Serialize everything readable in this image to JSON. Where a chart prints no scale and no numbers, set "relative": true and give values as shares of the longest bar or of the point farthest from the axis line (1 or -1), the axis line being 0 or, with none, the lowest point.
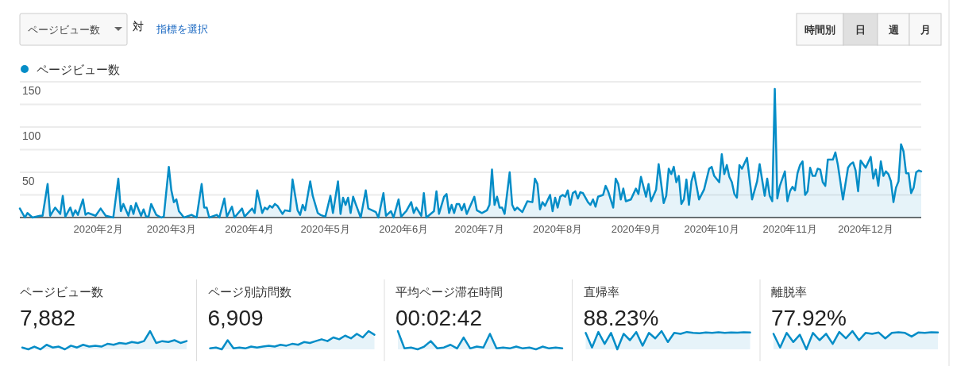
{
  "chart_data": [
    {
      "type": "area",
      "legend": "top left",
      "grid": "y",
      "annotations": [
        "ページビュー数",
        "対",
        "指標を選択",
        "時間別",
        "日",
        "週",
        "月"
      ],
      "xlim": [
        "2020-01-01",
        "2020-12-23"
      ],
      "xticks": [
        {
          "value": "2020-02-01",
          "label": "2020年2月"
        },
        {
          "value": "2020-03-01",
          "label": "2020年3月"
        },
        {
          "value": "2020-04-01",
          "label": "2020年4月"
        },
        {
          "value": "2020-05-01",
          "label": "2020年5月"
        },
        {
          "value": "2020-06-01",
          "label": "2020年6月"
        },
        {
          "value": "2020-07-01",
          "label": "2020年7月"
        },
        {
          "value": "2020-08-01",
          "label": "2020年8月"
        },
        {
          "value": "2020-09-01",
          "label": "2020年9月"
        },
        {
          "value": "2020-10-01",
          "label": "2020年10月"
        },
        {
          "value": "2020-11-01",
          "label": "2020年11月"
        },
        {
          "value": "2020-12-01",
          "label": "2020年12月"
        }
      ],
      "ylim": [
        0,
        150
      ],
      "yticks": [
        {
          "value": 0,
          "label": null
        },
        {
          "value": 25,
          "label": null
        },
        50,
        {
          "value": 75,
          "label": null
        },
        100,
        {
          "value": 125,
          "label": null
        },
        150
      ],
      "series": [
        {
          "name": "ページビュー数",
          "color": "#058dc7",
          "x": [
            "2020-01-01",
            "2020-01-03",
            "2020-01-04",
            "2020-01-06",
            "2020-01-09",
            "2020-01-10",
            "2020-01-12",
            "2020-01-13",
            "2020-01-15",
            "2020-01-17",
            "2020-01-18",
            "2020-01-19",
            "2020-01-21",
            "2020-01-22",
            "2020-01-23",
            "2020-01-24",
            "2020-01-26",
            "2020-01-27",
            "2020-01-28",
            "2020-01-31",
            "2020-02-02",
            "2020-02-04",
            "2020-02-07",
            "2020-02-09",
            "2020-02-10",
            "2020-02-11",
            "2020-02-13",
            "2020-02-14",
            "2020-02-15",
            "2020-02-16",
            "2020-02-18",
            "2020-02-19",
            "2020-02-20",
            "2020-02-21",
            "2020-02-22",
            "2020-02-24",
            "2020-02-26",
            "2020-02-27",
            "2020-02-29",
            "2020-03-01",
            "2020-03-02",
            "2020-03-03",
            "2020-03-04",
            "2020-03-06",
            "2020-03-09",
            "2020-03-11",
            "2020-03-13",
            "2020-03-14",
            "2020-03-15",
            "2020-03-16",
            "2020-03-19",
            "2020-03-20",
            "2020-03-22",
            "2020-03-23",
            "2020-03-25",
            "2020-03-26",
            "2020-03-29",
            "2020-03-30",
            "2020-04-02",
            "2020-04-03",
            "2020-04-04",
            "2020-04-06",
            "2020-04-07",
            "2020-04-08",
            "2020-04-09",
            "2020-04-10",
            "2020-04-11",
            "2020-04-12",
            "2020-04-14",
            "2020-04-15",
            "2020-04-17",
            "2020-04-18",
            "2020-04-20",
            "2020-04-21",
            "2020-04-22",
            "2020-04-23",
            "2020-04-25",
            "2020-04-26",
            "2020-04-28",
            "2020-04-29",
            "2020-05-01",
            "2020-05-03",
            "2020-05-04",
            "2020-05-06",
            "2020-05-07",
            "2020-05-08",
            "2020-05-09",
            "2020-05-10",
            "2020-05-11",
            "2020-05-12",
            "2020-05-13",
            "2020-05-15",
            "2020-05-17",
            "2020-05-18",
            "2020-05-21",
            "2020-05-22",
            "2020-05-24",
            "2020-05-25",
            "2020-05-27",
            "2020-05-28",
            "2020-05-30",
            "2020-05-31",
            "2020-06-02",
            "2020-06-04",
            "2020-06-05",
            "2020-06-06",
            "2020-06-08",
            "2020-06-09",
            "2020-06-10",
            "2020-06-13",
            "2020-06-14",
            "2020-06-15",
            "2020-06-17",
            "2020-06-18",
            "2020-06-19",
            "2020-06-20",
            "2020-06-21",
            "2020-06-22",
            "2020-06-23",
            "2020-06-24",
            "2020-06-25",
            "2020-06-26",
            "2020-06-29",
            "2020-06-30",
            "2020-07-02",
            "2020-07-04",
            "2020-07-05",
            "2020-07-06",
            "2020-07-07",
            "2020-07-08",
            "2020-07-09",
            "2020-07-10",
            "2020-07-11",
            "2020-07-13",
            "2020-07-14",
            "2020-07-15",
            "2020-07-16",
            "2020-07-18",
            "2020-07-20",
            "2020-07-22",
            "2020-07-23",
            "2020-07-24",
            "2020-07-25",
            "2020-07-26",
            "2020-07-27",
            "2020-07-29",
            "2020-07-30",
            "2020-07-31",
            "2020-08-01",
            "2020-08-02",
            "2020-08-03",
            "2020-08-04",
            "2020-08-05",
            "2020-08-06",
            "2020-08-07",
            "2020-08-08",
            "2020-08-09",
            "2020-08-10",
            "2020-08-11",
            "2020-08-13",
            "2020-08-14",
            "2020-08-15",
            "2020-08-16",
            "2020-08-17",
            "2020-08-19",
            "2020-08-20",
            "2020-08-21",
            "2020-08-23",
            "2020-08-24",
            "2020-08-25",
            "2020-08-26",
            "2020-08-27",
            "2020-08-28",
            "2020-08-30",
            "2020-08-31",
            "2020-09-01",
            "2020-09-02",
            "2020-09-03",
            "2020-09-05",
            "2020-09-06",
            "2020-09-07",
            "2020-09-09",
            "2020-09-10",
            "2020-09-12",
            "2020-09-13",
            "2020-09-14",
            "2020-09-15",
            "2020-09-16",
            "2020-09-17",
            "2020-09-18",
            "2020-09-19",
            "2020-09-20",
            "2020-09-21",
            "2020-09-22",
            "2020-09-23",
            "2020-09-24",
            "2020-09-26",
            "2020-09-28",
            "2020-09-30",
            "2020-10-01",
            "2020-10-02",
            "2020-10-04",
            "2020-10-05",
            "2020-10-06",
            "2020-10-07",
            "2020-10-08",
            "2020-10-09",
            "2020-10-10",
            "2020-10-11",
            "2020-10-12",
            "2020-10-13",
            "2020-10-15",
            "2020-10-17",
            "2020-10-19",
            "2020-10-20",
            "2020-10-22",
            "2020-10-23",
            "2020-10-24",
            "2020-10-25",
            "2020-10-26",
            "2020-10-27",
            "2020-10-28",
            "2020-10-30",
            "2020-10-31",
            "2020-11-01",
            "2020-11-02",
            "2020-11-03",
            "2020-11-04",
            "2020-11-05",
            "2020-11-06",
            "2020-11-07",
            "2020-11-08",
            "2020-11-09",
            "2020-11-10",
            "2020-11-11",
            "2020-11-12",
            "2020-11-13",
            "2020-11-14",
            "2020-11-15",
            "2020-11-16",
            "2020-11-18",
            "2020-11-19",
            "2020-11-20",
            "2020-11-22",
            "2020-11-24",
            "2020-11-25",
            "2020-11-26",
            "2020-11-27",
            "2020-11-28",
            "2020-11-29",
            "2020-12-01",
            "2020-12-03",
            "2020-12-04",
            "2020-12-05",
            "2020-12-06",
            "2020-12-07",
            "2020-12-08",
            "2020-12-09",
            "2020-12-10",
            "2020-12-11",
            "2020-12-12",
            "2020-12-13",
            "2020-12-14",
            "2020-12-15",
            "2020-12-16",
            "2020-12-17",
            "2020-12-18",
            "2020-12-19",
            "2020-12-20",
            "2020-12-21",
            "2020-12-22",
            "2020-12-23"
          ],
          "values": [
            10,
            0,
            5,
            0,
            2,
            2,
            37,
            2,
            11,
            4,
            24,
            1,
            11,
            2,
            8,
            3,
            20,
            3,
            5,
            2,
            10,
            2,
            0,
            43,
            7,
            15,
            2,
            13,
            4,
            16,
            2,
            9,
            1,
            1,
            15,
            3,
            0,
            1,
            56,
            30,
            17,
            20,
            7,
            0,
            3,
            0,
            37,
            11,
            11,
            0,
            3,
            0,
            21,
            1,
            12,
            0,
            10,
            1,
            10,
            5,
            30,
            5,
            11,
            9,
            13,
            11,
            15,
            13,
            4,
            8,
            7,
            42,
            8,
            3,
            14,
            8,
            40,
            24,
            5,
            3,
            1,
            24,
            5,
            40,
            4,
            22,
            14,
            22,
            5,
            23,
            15,
            0,
            30,
            10,
            6,
            0,
            27,
            2,
            7,
            0,
            20,
            1,
            7,
            17,
            5,
            11,
            2,
            27,
            0,
            7,
            29,
            4,
            23,
            26,
            5,
            14,
            5,
            15,
            15,
            8,
            15,
            4,
            23,
            8,
            5,
            8,
            14,
            53,
            14,
            23,
            11,
            11,
            4,
            50,
            14,
            8,
            11,
            6,
            18,
            17,
            43,
            37,
            9,
            17,
            13,
            25,
            7,
            22,
            11,
            23,
            25,
            23,
            30,
            14,
            27,
            29,
            21,
            28,
            27,
            17,
            14,
            20,
            12,
            23,
            25,
            35,
            29,
            11,
            43,
            37,
            20,
            32,
            18,
            20,
            26,
            32,
            26,
            45,
            23,
            37,
            18,
            31,
            59,
            16,
            24,
            54,
            48,
            56,
            39,
            46,
            15,
            20,
            42,
            14,
            40,
            50,
            20,
            31,
            54,
            56,
            46,
            39,
            70,
            48,
            58,
            45,
            39,
            26,
            22,
            58,
            54,
            66,
            20,
            40,
            59,
            24,
            43,
            24,
            18,
            142,
            21,
            35,
            51,
            18,
            29,
            34,
            30,
            49,
            58,
            62,
            25,
            29,
            55,
            46,
            46,
            54,
            53,
            39,
            35,
            64,
            64,
            72,
            58,
            20,
            55,
            59,
            61,
            52,
            29,
            63,
            55,
            67,
            43,
            53,
            35,
            62,
            46,
            51,
            48,
            40,
            17,
            33,
            40,
            81,
            73,
            49,
            49,
            27,
            33,
            50,
            52,
            51
          ]
        }
      ]
    },
    {
      "type": "area",
      "relative": true,
      "title": "ページビュー数",
      "subtitle": "7,882",
      "color": "#058dc7",
      "categories": [
        null,
        null,
        null,
        null,
        null,
        null,
        null,
        null,
        null,
        null,
        null,
        null,
        null,
        null,
        null,
        null,
        null,
        null,
        null,
        null,
        null,
        null,
        null,
        null,
        null,
        null,
        null,
        null
      ],
      "values": [
        0.1,
        0,
        0.15,
        0,
        0.25,
        0.1,
        0.15,
        0,
        0.2,
        0.1,
        0.25,
        0.15,
        0.2,
        0.15,
        0.3,
        0.25,
        0.35,
        0.3,
        0.4,
        0.35,
        0.45,
        1,
        0.35,
        0.45,
        0.4,
        0.5,
        0.35,
        0.45
      ]
    },
    {
      "type": "area",
      "relative": true,
      "title": "ページ別訪問数",
      "subtitle": "6,909",
      "color": "#058dc7",
      "categories": [
        null,
        null,
        null,
        null,
        null,
        null,
        null,
        null,
        null,
        null,
        null,
        null,
        null,
        null,
        null,
        null,
        null,
        null,
        null,
        null,
        null,
        null,
        null,
        null,
        null,
        null,
        null,
        null,
        null
      ],
      "values": [
        0.05,
        0.1,
        0,
        0.5,
        0.05,
        0.1,
        0.05,
        0.15,
        0.1,
        0.15,
        0.2,
        0.15,
        0.25,
        0.2,
        0.3,
        0.25,
        0.4,
        0.35,
        0.45,
        0.55,
        0.45,
        0.65,
        0.55,
        0.75,
        0.6,
        0.85,
        0.65,
        1,
        0.8
      ]
    },
    {
      "type": "area",
      "relative": true,
      "title": "平均ページ滞在時間",
      "subtitle": "00:02:42",
      "color": "#058dc7",
      "categories": [
        null,
        null,
        null,
        null,
        null,
        null,
        null,
        null,
        null,
        null,
        null,
        null,
        null,
        null,
        null,
        null,
        null,
        null,
        null,
        null,
        null,
        null,
        null,
        null,
        null,
        null
      ],
      "values": [
        1,
        0.05,
        0.1,
        0,
        0.15,
        0.45,
        0.05,
        0.1,
        0.25,
        0.05,
        0.65,
        0.05,
        0.15,
        0.1,
        0.85,
        0.05,
        0.1,
        0.05,
        0.15,
        0.05,
        0.1,
        0,
        0.15,
        0.05,
        0.1,
        0.05
      ]
    },
    {
      "type": "area",
      "relative": true,
      "title": "直帰率",
      "subtitle": "88.23%",
      "color": "#058dc7",
      "categories": [
        null,
        null,
        null,
        null,
        null,
        null,
        null,
        null,
        null,
        null,
        null,
        null,
        null,
        null,
        null,
        null,
        null,
        null,
        null,
        null,
        null,
        null,
        null,
        null,
        null,
        null,
        null
      ],
      "values": [
        0.9,
        0.1,
        0.95,
        0.3,
        0.9,
        0,
        0.85,
        0.5,
        0.95,
        0.2,
        0.9,
        0.6,
        1,
        0.4,
        0.9,
        0.85,
        0.95,
        0.9,
        0.88,
        0.92,
        0.9,
        0.93,
        0.9,
        0.92,
        0.91,
        0.93,
        0.92
      ]
    },
    {
      "type": "area",
      "relative": true,
      "title": "離脱率",
      "subtitle": "77.92%",
      "color": "#058dc7",
      "categories": [
        null,
        null,
        null,
        null,
        null,
        null,
        null,
        null,
        null,
        null,
        null,
        null,
        null,
        null,
        null,
        null,
        null,
        null,
        null,
        null,
        null,
        null,
        null,
        null,
        null,
        null
      ],
      "values": [
        0.85,
        0.1,
        0.9,
        0.4,
        0.8,
        0,
        0.9,
        0.5,
        0.85,
        0.3,
        0.95,
        0.6,
        1,
        0.5,
        0.9,
        0.85,
        0.92,
        0.6,
        0.9,
        0.93,
        0.9,
        0.7,
        0.92,
        0.9,
        0.93,
        0.92
      ]
    }
  ]
}
